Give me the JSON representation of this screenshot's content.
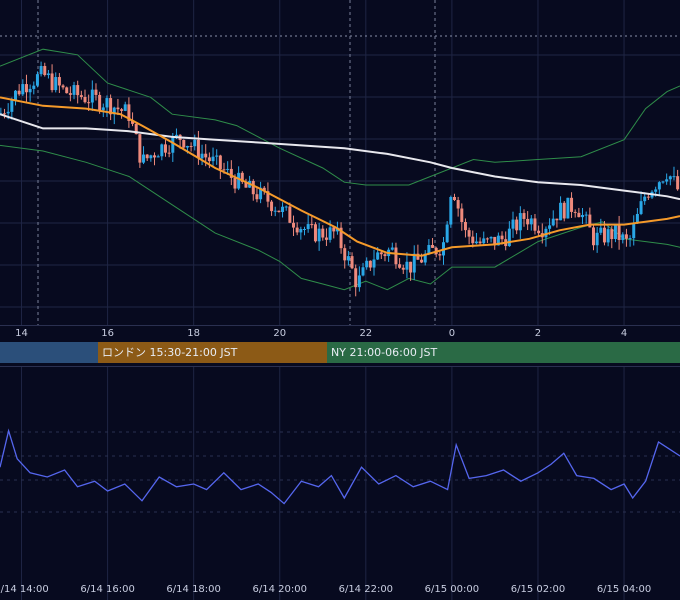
{
  "sessions": [
    {
      "label": "",
      "color": "#2b4f7a"
    },
    {
      "label": "ロンドン 15:30-21:00 JST",
      "color": "#8c5a16"
    },
    {
      "label": "NY 21:00-06:00 JST",
      "color": "#2a6a45"
    }
  ],
  "colors": {
    "background": "#070a1f",
    "grid": "#1f2544",
    "candle_up": "#2aa7e6",
    "candle_down": "#ee8a7c",
    "ma_short": "#f59a2a",
    "ma_long": "#e8e8ee",
    "bands": "#2f8d4a",
    "oscillator": "#5566ee"
  },
  "chart_data": [
    {
      "type": "candlestick",
      "description_series": [
        "candles",
        "ma_short",
        "ma_long",
        "bollinger_upper",
        "bollinger_lower"
      ],
      "x_tick_labels": [
        "14",
        "16",
        "18",
        "20",
        "22",
        "0",
        "2",
        "4"
      ],
      "x_tick_hours": [
        14,
        16,
        18,
        20,
        22,
        24,
        26,
        28
      ],
      "x_range_hours": [
        13.5,
        29.3
      ],
      "y_range": [
        0,
        100
      ],
      "grid": true,
      "indicators": {
        "ma_short": [
          [
            13.5,
            78
          ],
          [
            14.5,
            75
          ],
          [
            15.5,
            74
          ],
          [
            16.3,
            72
          ],
          [
            16.8,
            68
          ],
          [
            17.5,
            62
          ],
          [
            18.5,
            53
          ],
          [
            19.5,
            46
          ],
          [
            20.5,
            38
          ],
          [
            21.3,
            32
          ],
          [
            21.8,
            27
          ],
          [
            22.5,
            23
          ],
          [
            23.3,
            22
          ],
          [
            24,
            25
          ],
          [
            25,
            26
          ],
          [
            25.8,
            28
          ],
          [
            26.5,
            31
          ],
          [
            27.2,
            33
          ],
          [
            28,
            33
          ],
          [
            29,
            35
          ],
          [
            29.3,
            36
          ]
        ],
        "ma_long": [
          [
            13.5,
            72
          ],
          [
            14.5,
            67
          ],
          [
            15.5,
            67
          ],
          [
            16.5,
            66
          ],
          [
            17.5,
            64
          ],
          [
            18.5,
            63
          ],
          [
            19.5,
            62
          ],
          [
            20.5,
            61
          ],
          [
            21.5,
            60
          ],
          [
            22.5,
            58
          ],
          [
            23.5,
            55
          ],
          [
            24,
            53
          ],
          [
            25,
            50
          ],
          [
            26,
            48
          ],
          [
            27,
            47
          ],
          [
            28,
            45
          ],
          [
            29,
            43
          ],
          [
            29.3,
            42
          ]
        ],
        "bollinger_upper": [
          [
            13.5,
            89
          ],
          [
            14.5,
            95
          ],
          [
            15.3,
            93
          ],
          [
            16,
            83
          ],
          [
            17,
            78
          ],
          [
            17.5,
            72
          ],
          [
            18.5,
            70
          ],
          [
            19,
            68
          ],
          [
            20,
            60
          ],
          [
            21,
            53
          ],
          [
            21.5,
            48
          ],
          [
            22,
            47
          ],
          [
            23,
            47
          ],
          [
            23.5,
            50
          ],
          [
            24.5,
            56
          ],
          [
            25,
            55
          ],
          [
            26,
            56
          ],
          [
            27,
            57
          ],
          [
            28,
            63
          ],
          [
            28.5,
            74
          ],
          [
            29,
            80
          ],
          [
            29.3,
            82
          ]
        ],
        "bollinger_lower": [
          [
            13.5,
            61
          ],
          [
            14.5,
            59
          ],
          [
            15.5,
            55
          ],
          [
            16.5,
            50
          ],
          [
            17.5,
            40
          ],
          [
            18.5,
            30
          ],
          [
            19.5,
            24
          ],
          [
            20,
            20
          ],
          [
            20.5,
            14
          ],
          [
            21,
            12
          ],
          [
            21.5,
            10
          ],
          [
            22,
            13
          ],
          [
            22.5,
            10
          ],
          [
            23,
            14
          ],
          [
            23.5,
            12
          ],
          [
            24,
            18
          ],
          [
            25,
            18
          ],
          [
            26,
            27
          ],
          [
            27,
            32
          ],
          [
            27.5,
            34
          ],
          [
            28,
            28
          ],
          [
            29,
            26
          ],
          [
            29.3,
            25
          ]
        ]
      },
      "candles_anchor_closes": [
        [
          13.5,
          72
        ],
        [
          14,
          82
        ],
        [
          14.5,
          86
        ],
        [
          15,
          80
        ],
        [
          15.5,
          78
        ],
        [
          16,
          76
        ],
        [
          16.5,
          72
        ],
        [
          16.8,
          55
        ],
        [
          17.2,
          60
        ],
        [
          17.7,
          64
        ],
        [
          18.2,
          58
        ],
        [
          18.7,
          52
        ],
        [
          19.2,
          46
        ],
        [
          19.7,
          42
        ],
        [
          20.2,
          36
        ],
        [
          20.7,
          30
        ],
        [
          21.3,
          30
        ],
        [
          21.6,
          20
        ],
        [
          21.8,
          12
        ],
        [
          22.2,
          22
        ],
        [
          22.6,
          24
        ],
        [
          23,
          18
        ],
        [
          23.4,
          22
        ],
        [
          23.8,
          26
        ],
        [
          24,
          48
        ],
        [
          24.3,
          30
        ],
        [
          24.7,
          26
        ],
        [
          25.2,
          28
        ],
        [
          25.7,
          36
        ],
        [
          26.1,
          32
        ],
        [
          26.5,
          38
        ],
        [
          26.9,
          40
        ],
        [
          27.3,
          28
        ],
        [
          27.8,
          30
        ],
        [
          28.1,
          26
        ],
        [
          28.5,
          44
        ],
        [
          29,
          52
        ],
        [
          29.3,
          44
        ]
      ]
    },
    {
      "type": "line",
      "series": [
        {
          "values": [
            [
              13.5,
              52
            ],
            [
              13.7,
              78
            ],
            [
              13.9,
              58
            ],
            [
              14.2,
              48
            ],
            [
              14.6,
              45
            ],
            [
              15,
              50
            ],
            [
              15.3,
              38
            ],
            [
              15.7,
              42
            ],
            [
              16,
              35
            ],
            [
              16.4,
              40
            ],
            [
              16.8,
              28
            ],
            [
              17.2,
              45
            ],
            [
              17.6,
              38
            ],
            [
              18,
              40
            ],
            [
              18.3,
              36
            ],
            [
              18.7,
              48
            ],
            [
              19.1,
              36
            ],
            [
              19.5,
              40
            ],
            [
              19.8,
              34
            ],
            [
              20.1,
              26
            ],
            [
              20.5,
              42
            ],
            [
              20.9,
              38
            ],
            [
              21.2,
              46
            ],
            [
              21.5,
              30
            ],
            [
              21.9,
              52
            ],
            [
              22.3,
              40
            ],
            [
              22.7,
              46
            ],
            [
              23.1,
              38
            ],
            [
              23.5,
              42
            ],
            [
              23.9,
              36
            ],
            [
              24.1,
              68
            ],
            [
              24.4,
              44
            ],
            [
              24.8,
              46
            ],
            [
              25.2,
              50
            ],
            [
              25.6,
              42
            ],
            [
              26,
              48
            ],
            [
              26.3,
              54
            ],
            [
              26.6,
              62
            ],
            [
              26.9,
              46
            ],
            [
              27.3,
              44
            ],
            [
              27.7,
              36
            ],
            [
              28,
              40
            ],
            [
              28.2,
              30
            ],
            [
              28.5,
              42
            ],
            [
              28.8,
              70
            ],
            [
              29,
              66
            ],
            [
              29.3,
              60
            ]
          ]
        }
      ],
      "x_tick_labels": [
        "6/14 14:00",
        "6/14 16:00",
        "6/14 18:00",
        "6/14 20:00",
        "6/14 22:00",
        "6/15 00:00",
        "6/15 02:00",
        "6/15 04:00"
      ],
      "x_tick_hours": [
        14,
        16,
        18,
        20,
        22,
        24,
        26,
        28
      ],
      "y_range": [
        0,
        100
      ],
      "grid": true
    }
  ]
}
